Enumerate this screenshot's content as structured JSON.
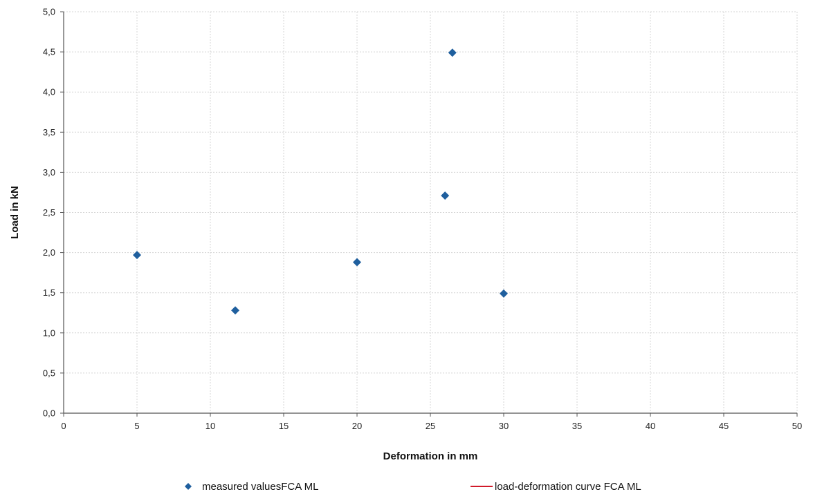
{
  "chart_data": {
    "type": "scatter",
    "title": "",
    "xlabel": "Deformation in mm",
    "ylabel": "Load in kN",
    "xlim": [
      0,
      50
    ],
    "ylim": [
      0,
      5
    ],
    "x_ticks": [
      "0",
      "5",
      "10",
      "15",
      "20",
      "25",
      "30",
      "35",
      "40",
      "45",
      "50"
    ],
    "y_ticks": [
      "0,0",
      "0,5",
      "1,0",
      "1,5",
      "2,0",
      "2,5",
      "3,0",
      "3,5",
      "4,0",
      "4,5",
      "5,0"
    ],
    "grid": true,
    "legend_position": "bottom",
    "series": [
      {
        "name": "measured valuesFCA ML",
        "marker": "diamond",
        "color": "#1f5f9e",
        "x": [
          5.0,
          11.7,
          20.0,
          26.0,
          26.5,
          30.0
        ],
        "y": [
          1.97,
          1.28,
          1.88,
          2.71,
          4.49,
          1.49
        ]
      },
      {
        "name": "load-deformation curve FCA ML",
        "marker": "line",
        "color": "#d11a2a",
        "x": [],
        "y": []
      }
    ]
  }
}
